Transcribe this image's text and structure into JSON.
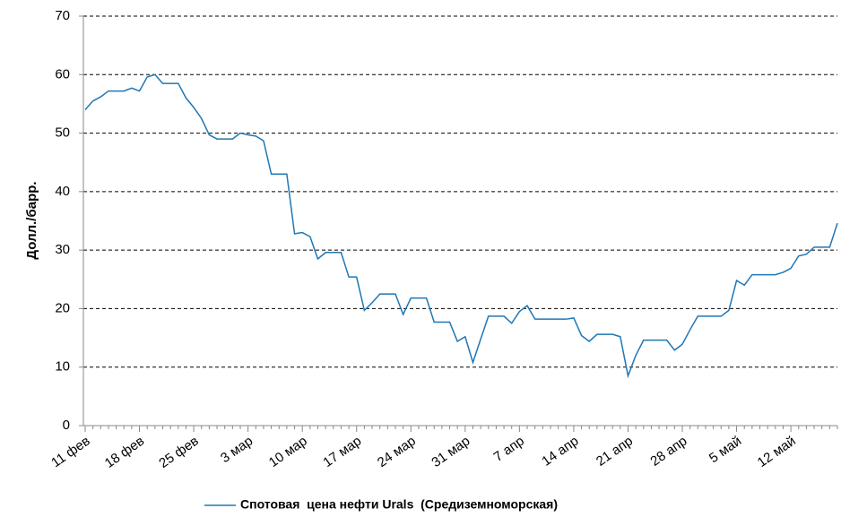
{
  "chart_data": {
    "type": "line",
    "y_label": "Долл./барр.",
    "categories": [
      "11 фев",
      null,
      null,
      null,
      null,
      null,
      null,
      "18 фев",
      null,
      null,
      null,
      null,
      null,
      null,
      "25 фев",
      null,
      null,
      null,
      null,
      null,
      null,
      "3 мар",
      null,
      null,
      null,
      null,
      null,
      null,
      "10 мар",
      null,
      null,
      null,
      null,
      null,
      null,
      "17 мар",
      null,
      null,
      null,
      null,
      null,
      null,
      "24 мар",
      null,
      null,
      null,
      null,
      null,
      null,
      "31 мар",
      null,
      null,
      null,
      null,
      null,
      null,
      "7 апр",
      null,
      null,
      null,
      null,
      null,
      null,
      "14 апр",
      null,
      null,
      null,
      null,
      null,
      null,
      "21 апр",
      null,
      null,
      null,
      null,
      null,
      null,
      "28 апр",
      null,
      null,
      null,
      null,
      null,
      null,
      "5 май",
      null,
      null,
      null,
      null,
      null,
      null,
      "12 май",
      null,
      null,
      null,
      null,
      null,
      null
    ],
    "series": [
      {
        "name": "Спотовая  цена нефти Urals  (Средиземноморская)",
        "color": "#1f77b4",
        "values": [
          54,
          55.5,
          56.2,
          57.2,
          57.2,
          57.2,
          57.7,
          57.2,
          59.6,
          60,
          58.5,
          58.5,
          58.5,
          56,
          54.4,
          52.5,
          49.7,
          49,
          49,
          49,
          50,
          49.7,
          49.5,
          48.7,
          43,
          43,
          43,
          32.8,
          33,
          32.3,
          28.5,
          29.6,
          29.6,
          29.6,
          25.4,
          25.4,
          19.7,
          21,
          22.5,
          22.5,
          22.5,
          19,
          21.8,
          21.8,
          21.8,
          17.7,
          17.7,
          17.7,
          14.4,
          15.2,
          10.8,
          14.8,
          18.7,
          18.7,
          18.7,
          17.5,
          19.5,
          20.5,
          18.2,
          18.2,
          18.2,
          18.2,
          18.2,
          18.4,
          15.4,
          14.4,
          15.6,
          15.6,
          15.6,
          15.2,
          8.5,
          12,
          14.6,
          14.6,
          14.6,
          14.6,
          12.9,
          13.9,
          16.4,
          18.7,
          18.7,
          18.7,
          18.7,
          19.7,
          24.8,
          24,
          25.8,
          25.8,
          25.8,
          25.8,
          26.2,
          26.9,
          29,
          29.3,
          30.5,
          30.5,
          30.5,
          34.6
        ]
      }
    ],
    "ylim": [
      0,
      70
    ],
    "yticks": [
      0,
      10,
      20,
      30,
      40,
      50,
      60,
      70
    ],
    "grid": true,
    "legend": "bottom"
  }
}
